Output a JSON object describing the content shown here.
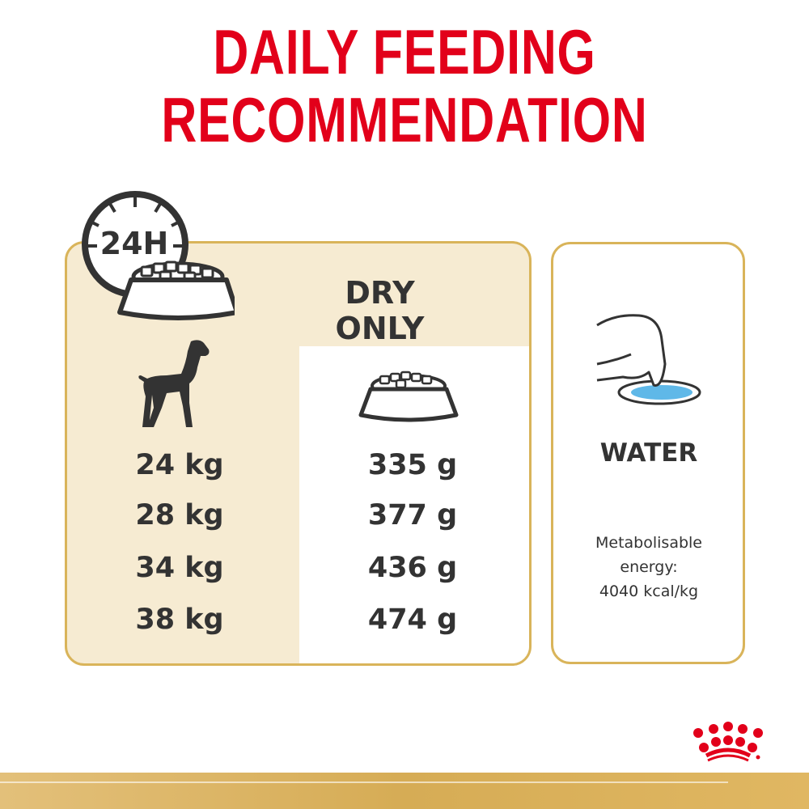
{
  "title": {
    "line1": "DAILY FEEDING",
    "line2": "RECOMMENDATION"
  },
  "clock_label": "24H",
  "feeding": {
    "header": "DRY ONLY",
    "rows": [
      {
        "weight": "24 kg",
        "amount": "335 g"
      },
      {
        "weight": "28 kg",
        "amount": "377 g"
      },
      {
        "weight": "34 kg",
        "amount": "436 g"
      },
      {
        "weight": "38 kg",
        "amount": "474 g"
      }
    ]
  },
  "water": {
    "label": "WATER",
    "energy_line1": "Metabolisable",
    "energy_line2": "energy:",
    "energy_line3": "4040 kcal/kg"
  },
  "colors": {
    "accent": "#e2001a",
    "gold": "#d9b45a",
    "cream": "#f6ebd2",
    "text": "#333333",
    "water": "#5fb8e8"
  },
  "icons": [
    "clock-24h-icon",
    "food-bowl-icon",
    "dog-icon",
    "dog-drinking-icon",
    "royal-canin-crown-logo"
  ]
}
